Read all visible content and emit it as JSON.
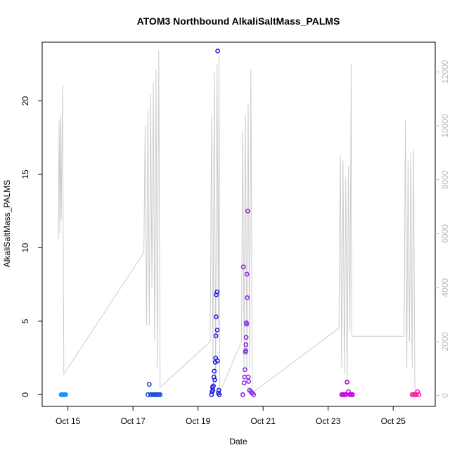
{
  "chart_data": {
    "type": "scatter",
    "title": "ATOM3 Northbound AlkaliSaltMass_PALMS",
    "xlabel": "Date",
    "ylabel": "AlkaliSaltMass_PALMS",
    "xlim": [
      "2017-10-14 05:00",
      "2017-10-26 07:00"
    ],
    "ylim": [
      -0.8,
      24
    ],
    "y_ticks": [
      0,
      5,
      10,
      15,
      20
    ],
    "x_ticks": [
      {
        "value": "2017-10-15 00:00",
        "label": "Oct 15"
      },
      {
        "value": "2017-10-17 00:00",
        "label": "Oct 17"
      },
      {
        "value": "2017-10-19 00:00",
        "label": "Oct 19"
      },
      {
        "value": "2017-10-21 00:00",
        "label": "Oct 21"
      },
      {
        "value": "2017-10-23 00:00",
        "label": "Oct 23"
      },
      {
        "value": "2017-10-25 00:00",
        "label": "Oct 25"
      }
    ],
    "y2_ticks": [
      0,
      2000,
      4000,
      6000,
      8000,
      10000,
      12000
    ],
    "y2lim": [
      -400,
      13100
    ],
    "grid": false,
    "series": [
      {
        "color": "#1e90ff",
        "points": [
          [
            "2017-10-14 19:00",
            0
          ],
          [
            "2017-10-14 19:40",
            0
          ],
          [
            "2017-10-14 20:20",
            0
          ],
          [
            "2017-10-14 21:00",
            0
          ],
          [
            "2017-10-14 21:40",
            0
          ],
          [
            "2017-10-14 22:20",
            0
          ]
        ]
      },
      {
        "color": "#1f4ed8",
        "points": [
          [
            "2017-10-17 11:00",
            0
          ],
          [
            "2017-10-17 12:00",
            0.7
          ],
          [
            "2017-10-17 13:00",
            0
          ],
          [
            "2017-10-17 14:00",
            0
          ],
          [
            "2017-10-17 15:00",
            0
          ],
          [
            "2017-10-17 16:00",
            0
          ],
          [
            "2017-10-17 17:00",
            0
          ],
          [
            "2017-10-17 18:00",
            0
          ],
          [
            "2017-10-17 19:00",
            0
          ],
          [
            "2017-10-17 20:00",
            0
          ]
        ]
      },
      {
        "color": "#2020e0",
        "points": [
          [
            "2017-10-19 10:00",
            0
          ],
          [
            "2017-10-19 10:20",
            0.2
          ],
          [
            "2017-10-19 10:40",
            0.5
          ],
          [
            "2017-10-19 11:00",
            0.3
          ],
          [
            "2017-10-19 11:20",
            0.6
          ],
          [
            "2017-10-19 11:40",
            1.2
          ],
          [
            "2017-10-19 12:00",
            1.6
          ],
          [
            "2017-10-19 12:20",
            1.0
          ],
          [
            "2017-10-19 12:40",
            2.2
          ],
          [
            "2017-10-19 13:00",
            2.5
          ],
          [
            "2017-10-19 13:10",
            4.0
          ],
          [
            "2017-10-19 13:20",
            5.3
          ],
          [
            "2017-10-19 13:30",
            6.8
          ],
          [
            "2017-10-19 14:00",
            7.0
          ],
          [
            "2017-10-19 14:10",
            4.4
          ],
          [
            "2017-10-19 14:20",
            2.3
          ],
          [
            "2017-10-19 14:30",
            23.4
          ],
          [
            "2017-10-19 15:00",
            0.1
          ],
          [
            "2017-10-19 15:20",
            0.3
          ],
          [
            "2017-10-19 15:40",
            0
          ]
        ]
      },
      {
        "color": "#8a2be2",
        "points": [
          [
            "2017-10-20 09:00",
            0
          ],
          [
            "2017-10-20 09:30",
            8.7
          ],
          [
            "2017-10-20 10:00",
            0.8
          ],
          [
            "2017-10-20 10:20",
            1.2
          ],
          [
            "2017-10-20 10:40",
            1.7
          ],
          [
            "2017-10-20 11:00",
            2.9
          ],
          [
            "2017-10-20 11:10",
            3.0
          ],
          [
            "2017-10-20 11:20",
            3.4
          ],
          [
            "2017-10-20 11:30",
            3.9
          ],
          [
            "2017-10-20 11:40",
            4.9
          ],
          [
            "2017-10-20 11:50",
            4.8
          ],
          [
            "2017-10-20 12:00",
            8.2
          ],
          [
            "2017-10-20 12:20",
            6.6
          ],
          [
            "2017-10-20 12:40",
            12.5
          ],
          [
            "2017-10-20 13:00",
            1.2
          ],
          [
            "2017-10-20 13:20",
            0.9
          ],
          [
            "2017-10-20 14:00",
            0.3
          ],
          [
            "2017-10-20 15:00",
            0.2
          ],
          [
            "2017-10-20 16:00",
            0.1
          ],
          [
            "2017-10-20 17:00",
            0
          ]
        ]
      },
      {
        "color": "#c000e0",
        "points": [
          [
            "2017-10-23 10:00",
            0
          ],
          [
            "2017-10-23 11:00",
            0
          ],
          [
            "2017-10-23 12:00",
            0
          ],
          [
            "2017-10-23 13:00",
            0
          ],
          [
            "2017-10-23 14:00",
            0.85
          ],
          [
            "2017-10-23 15:00",
            0.2
          ],
          [
            "2017-10-23 16:00",
            0
          ],
          [
            "2017-10-23 17:00",
            0
          ],
          [
            "2017-10-23 18:00",
            0
          ]
        ]
      },
      {
        "color": "#ff1aa8",
        "points": [
          [
            "2017-10-25 14:00",
            0
          ],
          [
            "2017-10-25 15:00",
            0
          ],
          [
            "2017-10-25 16:00",
            0
          ],
          [
            "2017-10-25 17:00",
            0
          ],
          [
            "2017-10-25 18:00",
            0.2
          ],
          [
            "2017-10-25 19:00",
            0
          ]
        ]
      }
    ],
    "secondary_line": {
      "color": "#cccccc",
      "points": [
        [
          "2017-10-14 17:00",
          5800
        ],
        [
          "2017-10-14 17:30",
          10200
        ],
        [
          "2017-10-14 18:00",
          6000
        ],
        [
          "2017-10-14 18:30",
          10400
        ],
        [
          "2017-10-14 19:00",
          6500
        ],
        [
          "2017-10-14 20:00",
          11500
        ],
        [
          "2017-10-14 21:00",
          800
        ],
        [
          "2017-10-17 08:00",
          5300
        ],
        [
          "2017-10-17 09:00",
          10000
        ],
        [
          "2017-10-17 10:00",
          2600
        ],
        [
          "2017-10-17 11:00",
          10600
        ],
        [
          "2017-10-17 12:00",
          2600
        ],
        [
          "2017-10-17 13:00",
          11200
        ],
        [
          "2017-10-17 14:00",
          4000
        ],
        [
          "2017-10-17 15:00",
          11600
        ],
        [
          "2017-10-17 16:00",
          2000
        ],
        [
          "2017-10-17 17:00",
          12100
        ],
        [
          "2017-10-17 18:00",
          1000
        ],
        [
          "2017-10-17 19:00",
          12800
        ],
        [
          "2017-10-17 20:00",
          300
        ],
        [
          "2017-10-19 09:00",
          2000
        ],
        [
          "2017-10-19 10:00",
          10400
        ],
        [
          "2017-10-19 11:00",
          1200
        ],
        [
          "2017-10-19 12:00",
          12000
        ],
        [
          "2017-10-19 13:00",
          500
        ],
        [
          "2017-10-19 14:00",
          12300
        ],
        [
          "2017-10-19 15:00",
          2600
        ],
        [
          "2017-10-19 15:30",
          12600
        ],
        [
          "2017-10-19 16:00",
          100
        ],
        [
          "2017-10-20 08:00",
          2000
        ],
        [
          "2017-10-20 09:00",
          9800
        ],
        [
          "2017-10-20 10:00",
          1000
        ],
        [
          "2017-10-20 11:00",
          10400
        ],
        [
          "2017-10-20 12:00",
          1000
        ],
        [
          "2017-10-20 13:00",
          10800
        ],
        [
          "2017-10-20 14:00",
          1000
        ],
        [
          "2017-10-20 15:00",
          12100
        ],
        [
          "2017-10-20 16:00",
          100
        ],
        [
          "2017-10-23 08:00",
          2500
        ],
        [
          "2017-10-23 09:00",
          8900
        ],
        [
          "2017-10-23 10:00",
          1000
        ],
        [
          "2017-10-23 11:00",
          8700
        ],
        [
          "2017-10-23 12:00",
          800
        ],
        [
          "2017-10-23 13:00",
          8100
        ],
        [
          "2017-10-23 14:00",
          500
        ],
        [
          "2017-10-23 15:00",
          8500
        ],
        [
          "2017-10-23 16:00",
          2400
        ],
        [
          "2017-10-23 17:00",
          12300
        ],
        [
          "2017-10-23 17:30",
          2200
        ],
        [
          "2017-10-25 08:00",
          2200
        ],
        [
          "2017-10-25 09:00",
          10200
        ],
        [
          "2017-10-25 10:00",
          1000
        ],
        [
          "2017-10-25 11:00",
          8700
        ],
        [
          "2017-10-25 12:00",
          2000
        ],
        [
          "2017-10-25 13:00",
          9000
        ],
        [
          "2017-10-25 14:00",
          1000
        ],
        [
          "2017-10-25 15:00",
          9100
        ],
        [
          "2017-10-25 16:00",
          100
        ]
      ]
    }
  }
}
